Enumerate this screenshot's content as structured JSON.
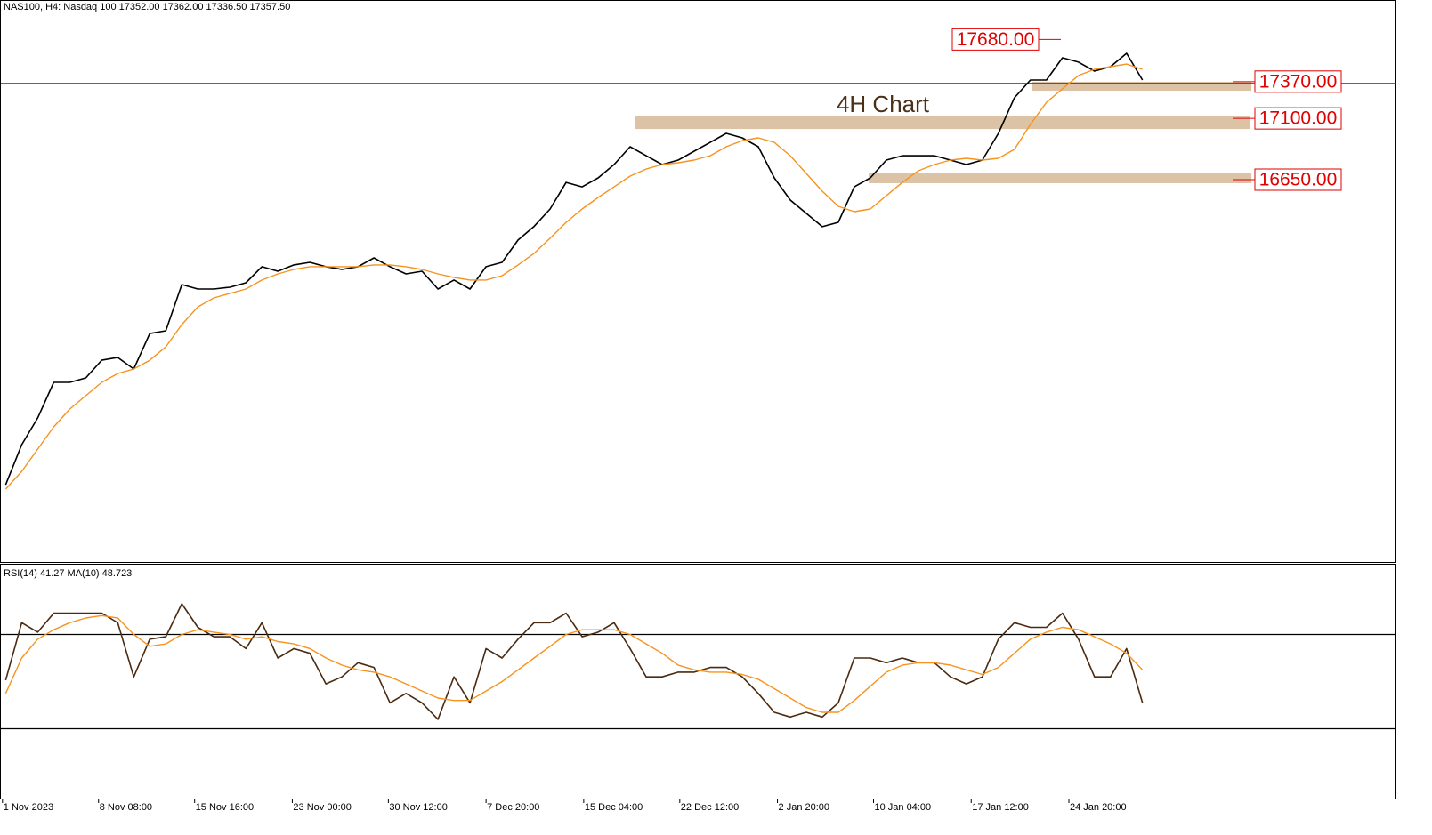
{
  "chart_data": [
    {
      "type": "line",
      "title": "NAS100, H4:  Nasdaq 100  17352.00 17362.00 17336.50 17357.50",
      "annotation": "4H Chart",
      "xlim": [
        -0.3,
        86.8
      ],
      "ylim": [
        13840,
        17970
      ],
      "price_line": 17357.5,
      "series": [
        {
          "color": "#000000",
          "values": [
            14408,
            14702,
            14899,
            15160,
            15160,
            15193,
            15323,
            15343,
            15258,
            15519,
            15539,
            15879,
            15846,
            15846,
            15859,
            15892,
            16010,
            15977,
            16023,
            16042,
            16010,
            15990,
            16010,
            16075,
            16010,
            15957,
            15977,
            15846,
            15912,
            15846,
            16010,
            16042,
            16206,
            16306,
            16434,
            16630,
            16597,
            16663,
            16761,
            16892,
            16826,
            16761,
            16794,
            16859,
            16924,
            16990,
            16957,
            16892,
            16663,
            16500,
            16402,
            16304,
            16336,
            16597,
            16663,
            16794,
            16826,
            16826,
            16826,
            16794,
            16761,
            16794,
            16990,
            17251,
            17382,
            17382,
            17545,
            17513,
            17447,
            17480,
            17578,
            17382
          ]
        },
        {
          "color": "#f7931e",
          "values": [
            14376,
            14506,
            14670,
            14833,
            14964,
            15062,
            15160,
            15225,
            15258,
            15323,
            15421,
            15585,
            15715,
            15781,
            15814,
            15846,
            15912,
            15957,
            15990,
            16010,
            16010,
            16010,
            16010,
            16023,
            16023,
            16010,
            15990,
            15957,
            15931,
            15912,
            15912,
            15944,
            16023,
            16108,
            16219,
            16336,
            16434,
            16519,
            16597,
            16676,
            16728,
            16761,
            16774,
            16794,
            16826,
            16892,
            16937,
            16957,
            16924,
            16826,
            16696,
            16565,
            16454,
            16415,
            16434,
            16532,
            16630,
            16715,
            16761,
            16794,
            16807,
            16794,
            16807,
            16872,
            17055,
            17218,
            17317,
            17415,
            17460,
            17480,
            17499,
            17460
          ]
        }
      ],
      "levels": [
        {
          "value": 17680,
          "label": "17680.00"
        },
        {
          "value": 17370,
          "label": "17370.00"
        },
        {
          "value": 17100,
          "label": "17100.00"
        },
        {
          "value": 16650,
          "label": "16650.00"
        }
      ],
      "zones": [
        {
          "top": 17369,
          "bottom": 17303,
          "start": 64.1,
          "end": 77.8
        },
        {
          "top": 17114,
          "bottom": 17022,
          "start": 39.3,
          "end": 77.7
        },
        {
          "top": 16696,
          "bottom": 16624,
          "start": 53.9,
          "end": 77.8
        }
      ],
      "zone_color": "#dcc3a6"
    },
    {
      "type": "line",
      "title": "RSI(14) 41.27 MA(10) 48.723",
      "xlim": [
        -0.3,
        86.8
      ],
      "ylim": [
        0,
        100
      ],
      "levels": [
        70,
        30
      ],
      "series": [
        {
          "color": "#4a2a10",
          "values": [
            50.6,
            75,
            71,
            79,
            79,
            79,
            79,
            75,
            52,
            68,
            69,
            83,
            73,
            69,
            69,
            64,
            75,
            60,
            64,
            62,
            49,
            52,
            58,
            56,
            41,
            45,
            41,
            34,
            52,
            41,
            64,
            60,
            68,
            75,
            75,
            79,
            69,
            71,
            75,
            64,
            52,
            52,
            54,
            54,
            56,
            56,
            52,
            45,
            37,
            35,
            37,
            35,
            41,
            60,
            60,
            58,
            60,
            58,
            58,
            52,
            49,
            52,
            68,
            75,
            73,
            73,
            79,
            68,
            52,
            52,
            64,
            41
          ]
        },
        {
          "color": "#f7931e",
          "values": [
            45,
            60,
            68,
            72,
            75,
            77,
            78,
            77,
            70,
            65,
            66,
            70,
            72,
            71,
            70,
            68,
            69,
            67,
            66,
            64,
            60,
            57,
            55,
            54,
            52,
            49,
            46,
            43,
            42,
            42,
            46,
            50,
            55,
            60,
            65,
            70,
            72,
            72,
            72,
            70,
            66,
            62,
            57,
            55,
            54,
            54,
            53,
            51,
            47,
            43,
            39,
            37,
            37,
            42,
            48,
            54,
            57,
            58,
            58,
            57,
            55,
            53,
            56,
            62,
            68,
            71,
            73,
            72,
            69,
            66,
            62,
            55
          ]
        }
      ],
      "xticks": [
        {
          "value": -0.2,
          "label": "1 Nov 2023"
        },
        {
          "value": 5.8,
          "label": "8 Nov 08:00"
        },
        {
          "value": 11.8,
          "label": "15 Nov 16:00"
        },
        {
          "value": 17.9,
          "label": "23 Nov 00:00"
        },
        {
          "value": 23.9,
          "label": "30 Nov 12:00"
        },
        {
          "value": 30,
          "label": "7 Dec 20:00"
        },
        {
          "value": 36.1,
          "label": "15 Dec 04:00"
        },
        {
          "value": 42.1,
          "label": "22 Dec 12:00"
        },
        {
          "value": 48.2,
          "label": "2 Jan 20:00"
        },
        {
          "value": 54.2,
          "label": "10 Jan 04:00"
        },
        {
          "value": 60.3,
          "label": "17 Jan 12:00"
        },
        {
          "value": 66.4,
          "label": "24 Jan 20:00"
        }
      ]
    }
  ]
}
